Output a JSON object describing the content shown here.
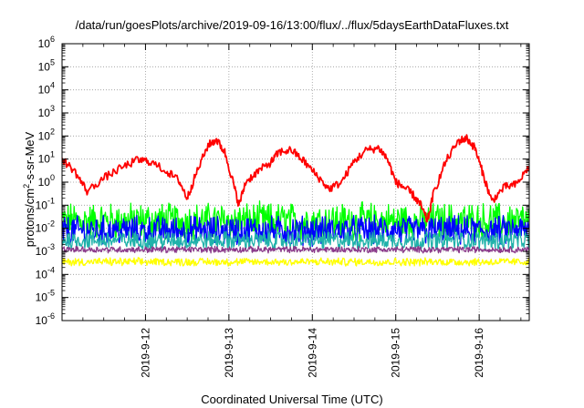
{
  "title": "/data/run/goesPlots/archive/2019-09-16/13:00/flux/../flux/5daysEarthDataFluxes.txt",
  "chart_data": {
    "type": "line",
    "title": "/data/run/goesPlots/archive/2019-09-16/13:00/flux/../flux/5daysEarthDataFluxes.txt",
    "xlabel": "Coordinated Universal Time (UTC)",
    "ylabel_parts": [
      "protons/cm",
      "2",
      "-s-sr-MeV"
    ],
    "x_ticks": [
      "2019-9-12",
      "2019-9-13",
      "2019-9-14",
      "2019-9-15",
      "2019-9-16"
    ],
    "x_range_days": [
      0,
      5.6
    ],
    "x_tick_positions_days": [
      1,
      2,
      3,
      4,
      5
    ],
    "y_scale": "log",
    "y_range": [
      1e-06,
      1000000.0
    ],
    "y_ticks": [
      {
        "base": "10",
        "exp": "6",
        "value": 1000000.0
      },
      {
        "base": "10",
        "exp": "5",
        "value": 100000.0
      },
      {
        "base": "10",
        "exp": "4",
        "value": 10000.0
      },
      {
        "base": "10",
        "exp": "3",
        "value": 1000.0
      },
      {
        "base": "10",
        "exp": "2",
        "value": 100.0
      },
      {
        "base": "10",
        "exp": "1",
        "value": 10.0
      },
      {
        "base": "10",
        "exp": "0",
        "value": 1
      },
      {
        "base": "10",
        "exp": "-1",
        "value": 0.1
      },
      {
        "base": "10",
        "exp": "-2",
        "value": 0.01
      },
      {
        "base": "10",
        "exp": "-3",
        "value": 0.001
      },
      {
        "base": "10",
        "exp": "-4",
        "value": 0.0001
      },
      {
        "base": "10",
        "exp": "-5",
        "value": 1e-05
      },
      {
        "base": "10",
        "exp": "-6",
        "value": 1e-06
      }
    ],
    "grid": true,
    "legend": "none",
    "series": [
      {
        "color": "#ff0000",
        "kind": "smooth",
        "points": [
          [
            0,
            10
          ],
          [
            0.15,
            3
          ],
          [
            0.3,
            0.4
          ],
          [
            0.5,
            1.5
          ],
          [
            0.7,
            4
          ],
          [
            0.9,
            9
          ],
          [
            1.05,
            8
          ],
          [
            1.25,
            3
          ],
          [
            1.4,
            1.2
          ],
          [
            1.5,
            0.2
          ],
          [
            1.6,
            2
          ],
          [
            1.75,
            40
          ],
          [
            1.85,
            70
          ],
          [
            1.95,
            20
          ],
          [
            2.05,
            1
          ],
          [
            2.12,
            0.1
          ],
          [
            2.2,
            1
          ],
          [
            2.35,
            3
          ],
          [
            2.5,
            7
          ],
          [
            2.6,
            20
          ],
          [
            2.75,
            25
          ],
          [
            2.9,
            8
          ],
          [
            3.05,
            2
          ],
          [
            3.2,
            0.5
          ],
          [
            3.35,
            1
          ],
          [
            3.5,
            8
          ],
          [
            3.65,
            25
          ],
          [
            3.8,
            30
          ],
          [
            3.9,
            10
          ],
          [
            4.0,
            1
          ],
          [
            4.1,
            0.6
          ],
          [
            4.2,
            0.3
          ],
          [
            4.3,
            0.1
          ],
          [
            4.38,
            0.02
          ],
          [
            4.45,
            0.3
          ],
          [
            4.6,
            8
          ],
          [
            4.75,
            60
          ],
          [
            4.85,
            80
          ],
          [
            4.95,
            30
          ],
          [
            5.05,
            2
          ],
          [
            5.15,
            0.15
          ],
          [
            5.3,
            0.6
          ],
          [
            5.45,
            0.8
          ],
          [
            5.6,
            5
          ]
        ]
      },
      {
        "color": "#00ff00",
        "kind": "noise",
        "center": 0.02,
        "spread": 0.7
      },
      {
        "color": "#0000ff",
        "kind": "noise",
        "center": 0.008,
        "spread": 0.55
      },
      {
        "color": "#20b2aa",
        "kind": "noise",
        "center": 0.003,
        "spread": 0.35
      },
      {
        "color": "#8b3a8b",
        "kind": "noise",
        "center": 0.0012,
        "spread": 0.12
      },
      {
        "color": "#ffff00",
        "kind": "noise",
        "center": 0.00035,
        "spread": 0.15
      }
    ]
  }
}
